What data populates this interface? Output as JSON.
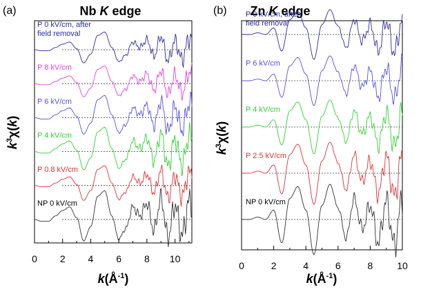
{
  "panels": [
    {
      "panel_label": "(a)",
      "title_prefix": "Nb ",
      "title_italic": "K",
      "title_suffix": " edge",
      "xlabel_main": "k",
      "xlabel_unit": "(Å",
      "xlabel_sup": "-1",
      "xlabel_close": ")",
      "ylabel_k": "k",
      "ylabel_sup": "3",
      "ylabel_chi": "χ(",
      "ylabel_k2": "k",
      "ylabel_close": ")",
      "ticks": [
        "0",
        "2",
        "4",
        "6",
        "8",
        "10"
      ],
      "spectra": [
        {
          "label_lines": [
            "P 0 kV/cm, after",
            "field removal"
          ],
          "color": "#2a2aa0"
        },
        {
          "label_lines": [
            "P 8 kV/cm"
          ],
          "color": "#e040e0"
        },
        {
          "label_lines": [
            "P 6 kV/cm"
          ],
          "color": "#5050e0"
        },
        {
          "label_lines": [
            "P 4 kV/cm"
          ],
          "color": "#30d030"
        },
        {
          "label_lines": [
            "P 0.8 kV/cm"
          ],
          "color": "#e03030"
        },
        {
          "label_lines": [
            "NP 0 kV/cm"
          ],
          "color": "#303030"
        }
      ]
    },
    {
      "panel_label": "(b)",
      "title_prefix": "Zn ",
      "title_italic": "K",
      "title_suffix": " edge",
      "xlabel_main": "k",
      "xlabel_unit": "(Å",
      "xlabel_sup": "-1",
      "xlabel_close": ")",
      "ylabel_k": "k",
      "ylabel_sup": "3",
      "ylabel_chi": "χ(",
      "ylabel_k2": "k",
      "ylabel_close": ")",
      "ticks": [
        "0",
        "2",
        "4",
        "6",
        "8",
        "10"
      ],
      "spectra": [
        {
          "label_lines": [
            "P 0 kV/cm, after",
            "field removal"
          ],
          "color": "#2a2aa0"
        },
        {
          "label_lines": [
            "P 6 kV/cm"
          ],
          "color": "#5050e0"
        },
        {
          "label_lines": [
            "P 4 kV/cm"
          ],
          "color": "#30d030"
        },
        {
          "label_lines": [
            "P 2.5 kV/cm"
          ],
          "color": "#e03030"
        },
        {
          "label_lines": [
            "NP 0 kV/cm"
          ],
          "color": "#303030"
        }
      ]
    }
  ],
  "chart_data": [
    {
      "type": "line",
      "title": "Nb K edge",
      "xlabel": "k(Å-1)",
      "ylabel": "k3χ(k)",
      "xlim": [
        0,
        11.2
      ],
      "xticks": [
        0,
        2,
        4,
        6,
        8,
        10
      ],
      "series": [
        {
          "name": "P 0 kV/cm, after field removal",
          "color": "#2a2aa0",
          "x": [
            0,
            0.5,
            1,
            1.5,
            2,
            2.5,
            3,
            3.5,
            4,
            4.5,
            5,
            5.5,
            6,
            6.5,
            7,
            7.5,
            8,
            8.5,
            9,
            9.5,
            10,
            10.5,
            11
          ],
          "y": [
            0,
            -0.1,
            -0.1,
            0.2,
            0.5,
            0.7,
            0.1,
            -1.2,
            -0.4,
            1.3,
            1.6,
            0.2,
            -1.1,
            -0.5,
            0.7,
            0.2,
            0.9,
            -0.6,
            1.2,
            -1.0,
            0.8,
            -0.9,
            1.0
          ]
        },
        {
          "name": "P 8 kV/cm",
          "color": "#e040e0",
          "x": [
            0,
            0.5,
            1,
            1.5,
            2,
            2.5,
            3,
            3.5,
            4,
            4.5,
            5,
            5.5,
            6,
            6.5,
            7,
            7.5,
            8,
            8.5,
            9,
            9.5,
            10,
            10.5,
            11
          ],
          "y": [
            0,
            -0.1,
            -0.1,
            0.2,
            0.5,
            0.7,
            0.1,
            -1.2,
            -0.4,
            1.3,
            1.6,
            0.2,
            -1.1,
            -0.5,
            0.7,
            0.2,
            0.9,
            -0.6,
            1.2,
            -1.0,
            0.8,
            -0.9,
            1.0
          ]
        },
        {
          "name": "P 6 kV/cm",
          "color": "#5050e0",
          "x": [
            0,
            0.5,
            1,
            1.5,
            2,
            2.5,
            3,
            3.5,
            4,
            4.5,
            5,
            5.5,
            6,
            6.5,
            7,
            7.5,
            8,
            8.5,
            9,
            9.5,
            10,
            10.5,
            11
          ],
          "y": [
            0,
            -0.1,
            -0.1,
            0.2,
            0.5,
            0.7,
            0.1,
            -1.2,
            -0.4,
            1.3,
            1.6,
            0.2,
            -1.1,
            -0.5,
            0.7,
            0.2,
            0.9,
            -0.6,
            1.2,
            -1.0,
            0.8,
            -0.9,
            1.0
          ]
        },
        {
          "name": "P 4 kV/cm",
          "color": "#30d030",
          "x": [
            0,
            0.5,
            1,
            1.5,
            2,
            2.5,
            3,
            3.5,
            4,
            4.5,
            5,
            5.5,
            6,
            6.5,
            7,
            7.5,
            8,
            8.5,
            9,
            9.5,
            10,
            10.5,
            11
          ],
          "y": [
            0,
            -0.1,
            -0.1,
            0.2,
            0.5,
            0.7,
            0.1,
            -1.2,
            -0.4,
            1.3,
            1.6,
            0.2,
            -1.1,
            -0.5,
            0.7,
            0.2,
            0.9,
            -0.6,
            1.2,
            -1.0,
            0.8,
            -0.9,
            1.0
          ]
        },
        {
          "name": "P 0.8 kV/cm",
          "color": "#e03030",
          "x": [
            0,
            0.5,
            1,
            1.5,
            2,
            2.5,
            3,
            3.5,
            4,
            4.5,
            5,
            5.5,
            6,
            6.5,
            7,
            7.5,
            8,
            8.5,
            9,
            9.5,
            10,
            10.5,
            11
          ],
          "y": [
            0,
            -0.1,
            -0.1,
            0.2,
            0.5,
            0.7,
            0.1,
            -1.2,
            -0.4,
            1.3,
            1.6,
            0.2,
            -1.1,
            -0.5,
            0.7,
            0.2,
            0.9,
            -0.6,
            1.2,
            -1.0,
            0.8,
            -0.9,
            1.0
          ]
        },
        {
          "name": "NP 0 kV/cm",
          "color": "#303030",
          "x": [
            0,
            0.5,
            1,
            1.5,
            2,
            2.5,
            3,
            3.5,
            4,
            4.5,
            5,
            5.5,
            6,
            6.5,
            7,
            7.5,
            8,
            8.5,
            9,
            9.5,
            10,
            10.5,
            11
          ],
          "y": [
            0,
            -0.1,
            -0.1,
            0.2,
            0.5,
            0.7,
            0.1,
            -1.2,
            -0.4,
            1.3,
            1.6,
            0.2,
            -1.1,
            -0.5,
            0.7,
            0.2,
            0.9,
            -0.6,
            1.2,
            -1.0,
            0.8,
            -0.9,
            1.0
          ]
        }
      ]
    },
    {
      "type": "line",
      "title": "Zn K edge",
      "xlabel": "k(Å-1)",
      "ylabel": "k3χ(k)",
      "xlim": [
        0,
        10
      ],
      "xticks": [
        0,
        2,
        4,
        6,
        8,
        10
      ],
      "series": [
        {
          "name": "P 0 kV/cm, after field removal",
          "color": "#2a2aa0",
          "x": [
            0,
            0.5,
            1,
            1.5,
            2,
            2.5,
            3,
            3.5,
            4,
            4.5,
            5,
            5.5,
            6,
            6.5,
            7,
            7.5,
            8,
            8.5,
            9,
            9.5,
            10
          ],
          "y": [
            0,
            0,
            0.1,
            0,
            0.4,
            -1.0,
            0.9,
            1.4,
            0.4,
            -1.5,
            0.6,
            1.5,
            0.5,
            -0.8,
            0.9,
            -0.4,
            0.6,
            -1.0,
            0.8,
            -1.1,
            0.9
          ]
        },
        {
          "name": "P 6 kV/cm",
          "color": "#5050e0",
          "x": [
            0,
            0.5,
            1,
            1.5,
            2,
            2.5,
            3,
            3.5,
            4,
            4.5,
            5,
            5.5,
            6,
            6.5,
            7,
            7.5,
            8,
            8.5,
            9,
            9.5,
            10
          ],
          "y": [
            0,
            0,
            0.1,
            0,
            0.4,
            -1.0,
            0.9,
            1.4,
            0.4,
            -1.5,
            0.6,
            1.5,
            0.5,
            -0.8,
            0.9,
            -0.4,
            0.6,
            -1.0,
            0.8,
            -1.1,
            0.9
          ]
        },
        {
          "name": "P 4 kV/cm",
          "color": "#30d030",
          "x": [
            0,
            0.5,
            1,
            1.5,
            2,
            2.5,
            3,
            3.5,
            4,
            4.5,
            5,
            5.5,
            6,
            6.5,
            7,
            7.5,
            8,
            8.5,
            9,
            9.5,
            10
          ],
          "y": [
            0,
            0,
            0.1,
            0,
            0.4,
            -1.0,
            0.9,
            1.4,
            0.4,
            -1.5,
            0.6,
            1.5,
            0.5,
            -0.8,
            0.9,
            -0.4,
            0.6,
            -1.0,
            0.8,
            -1.1,
            0.9
          ]
        },
        {
          "name": "P 2.5 kV/cm",
          "color": "#e03030",
          "x": [
            0,
            0.5,
            1,
            1.5,
            2,
            2.5,
            3,
            3.5,
            4,
            4.5,
            5,
            5.5,
            6,
            6.5,
            7,
            7.5,
            8,
            8.5,
            9,
            9.5,
            10
          ],
          "y": [
            0,
            0,
            0.1,
            0,
            0.4,
            -1.0,
            0.9,
            1.4,
            0.4,
            -1.5,
            0.6,
            1.5,
            0.5,
            -0.8,
            0.9,
            -0.4,
            0.6,
            -1.0,
            0.8,
            -1.1,
            0.9
          ]
        },
        {
          "name": "NP 0 kV/cm",
          "color": "#303030",
          "x": [
            0,
            0.5,
            1,
            1.5,
            2,
            2.5,
            3,
            3.5,
            4,
            4.5,
            5,
            5.5,
            6,
            6.5,
            7,
            7.5,
            8,
            8.5,
            9,
            9.5,
            10
          ],
          "y": [
            0,
            0,
            0.1,
            0,
            0.4,
            -1.0,
            0.9,
            1.4,
            0.4,
            -1.5,
            0.6,
            1.5,
            0.5,
            -0.8,
            0.9,
            -0.4,
            0.6,
            -1.0,
            0.8,
            -1.1,
            0.9
          ]
        }
      ]
    }
  ]
}
